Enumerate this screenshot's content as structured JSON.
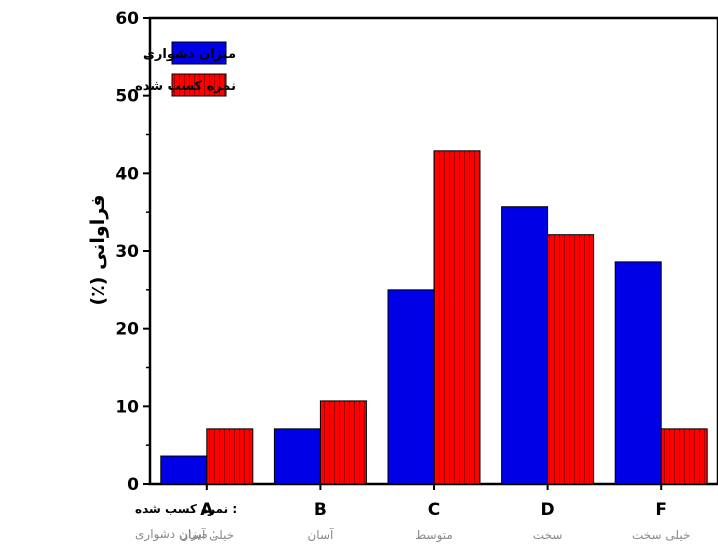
{
  "chart_data": {
    "type": "bar",
    "ylabel": "فراوانی (٪)",
    "ylim": [
      0,
      60
    ],
    "yticks": [
      "0",
      "10",
      "20",
      "30",
      "40",
      "50",
      "60"
    ],
    "categories": [
      "A",
      "B",
      "C",
      "D",
      "F"
    ],
    "category_sublabels": [
      "خیلی آسان",
      "آسان",
      "متوسط",
      "سخت",
      "خیلی سخت"
    ],
    "row_labels": {
      "grade": ": نمره کسب شده",
      "difficulty": ": میزان دشواری"
    },
    "series": [
      {
        "name": "میزان دشواری",
        "color": "#0000e6",
        "values": [
          3.6,
          7.1,
          25.0,
          35.7,
          28.6
        ]
      },
      {
        "name": "نمره کسب شده",
        "color": "#ff0000",
        "values": [
          7.1,
          10.7,
          42.9,
          32.1,
          7.1
        ]
      }
    ],
    "legend_position": "top-left",
    "grid": false
  }
}
